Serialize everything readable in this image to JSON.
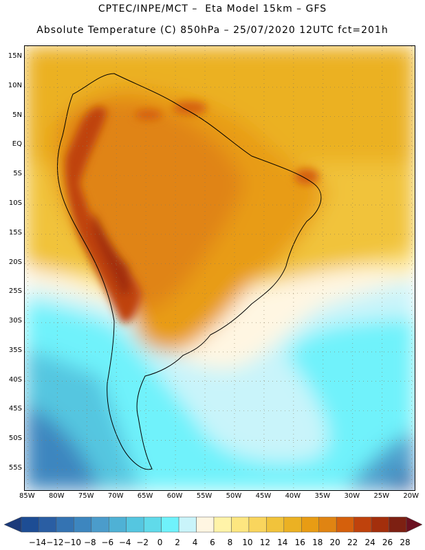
{
  "header": {
    "title_line1": "CPTEC/INPE/MCT –  Eta Model 15km – GFS",
    "title_line2": "Absolute Temperature (C) 850hPa – 25/07/2020 12UTC fct=201h"
  },
  "map": {
    "lat_labels": [
      "15N",
      "10N",
      "5N",
      "EQ",
      "5S",
      "10S",
      "15S",
      "20S",
      "25S",
      "30S",
      "35S",
      "40S",
      "45S",
      "50S",
      "55S"
    ],
    "lon_labels": [
      "85W",
      "80W",
      "75W",
      "70W",
      "65W",
      "60W",
      "55W",
      "50W",
      "45W",
      "40W",
      "35W",
      "30W",
      "25W",
      "20W"
    ],
    "lat_range": [
      17,
      -58.5
    ],
    "lon_range": [
      -85.5,
      -19.5
    ]
  },
  "colorbar": {
    "labels": [
      "-14",
      "-12",
      "-10",
      "-8",
      "-6",
      "-4",
      "-2",
      "0",
      "2",
      "4",
      "6",
      "8",
      "10",
      "12",
      "14",
      "16",
      "18",
      "20",
      "22",
      "24",
      "26",
      "28"
    ],
    "colors": [
      "#1d4d94",
      "#2a5ea3",
      "#3473b2",
      "#3d86bf",
      "#4b9ccb",
      "#4fb1d5",
      "#55c6e0",
      "#60daea",
      "#6ff2fb",
      "#c9f4fa",
      "#fff6e2",
      "#fff3a8",
      "#fde680",
      "#f9d55d",
      "#f1c33b",
      "#ebb123",
      "#e89c14",
      "#e08412",
      "#d5600c",
      "#bf420c",
      "#a32f0c",
      "#7d2012"
    ]
  }
}
